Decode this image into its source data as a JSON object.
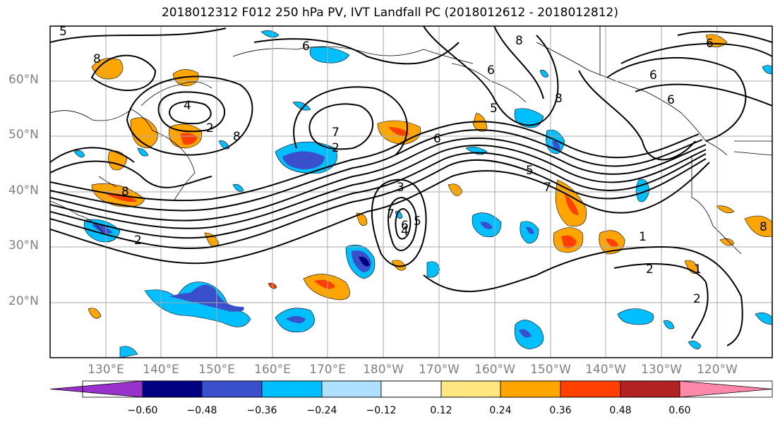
{
  "title": "2018012312 F012 250 hPa PV, IVT Landfall PC (2018012612 - 2018012812)",
  "latitude_labels": [
    "60°N",
    "50°N",
    "40°N",
    "30°N",
    "20°N"
  ],
  "longitude_labels": [
    "130°E",
    "140°E",
    "150°E",
    "160°E",
    "170°E",
    "180°W",
    "170°W",
    "160°W",
    "150°W",
    "140°W",
    "130°W",
    "120°W"
  ],
  "contour_labels": [
    "5",
    "6",
    "8",
    "6",
    "4",
    "8",
    "2",
    "7",
    "8",
    "6",
    "6",
    "6",
    "8",
    "6",
    "5",
    "2",
    "4",
    "3",
    "7",
    "6",
    "5",
    "1",
    "2",
    "2",
    "8",
    "7",
    "5",
    "8",
    "1",
    "2"
  ],
  "colorbar": {
    "ticks": [
      "−0.60",
      "−0.48",
      "−0.36",
      "−0.24",
      "−0.12",
      "0.12",
      "0.24",
      "0.36",
      "0.48",
      "0.60"
    ],
    "colors": [
      "#9932cc",
      "#000080",
      "#3a4fcc",
      "#00bfff",
      "#b0e0ff",
      "#ffffff",
      "#ffe680",
      "#ffa500",
      "#ff4000",
      "#b22222",
      "#ff88aa"
    ]
  }
}
